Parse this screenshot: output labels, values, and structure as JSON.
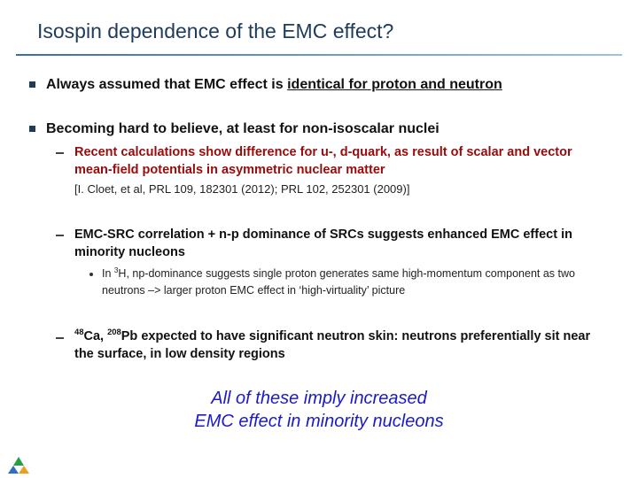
{
  "header": {
    "title": "Isospin dependence of the EMC effect?"
  },
  "bullets": [
    {
      "text": "Always assumed that EMC effect is ",
      "underlined": "identical for proton and neutron"
    },
    {
      "text": "Becoming hard to believe, at least for non-isoscalar nuclei",
      "subitems": [
        {
          "text": "Recent calculations show difference for u-, d-quark, as result of scalar and vector mean-field potentials in asymmetric nuclear matter",
          "reference": "[I. Cloet, et al, PRL 109, 182301 (2012); PRL 102, 252301 (2009)]"
        },
        {
          "text": "EMC-SRC correlation + n-p dominance of SRCs suggests enhanced EMC effect in minority nucleons",
          "detail": {
            "before": "In ",
            "sup": "3",
            "after": "H, np-dominance suggests single proton generates same high-momentum component as two neutrons –> larger proton EMC effect in ‘high-virtuality’ picture"
          }
        },
        {
          "sup1": "48",
          "part1": "Ca, ",
          "sup2": "208",
          "part2": "Pb expected to have significant neutron skin: neutrons preferentially sit near the surface, in low density regions"
        }
      ]
    }
  ],
  "conclusion": {
    "line1": "All of these imply increased",
    "line2": "EMC effect in minority nucleons"
  }
}
